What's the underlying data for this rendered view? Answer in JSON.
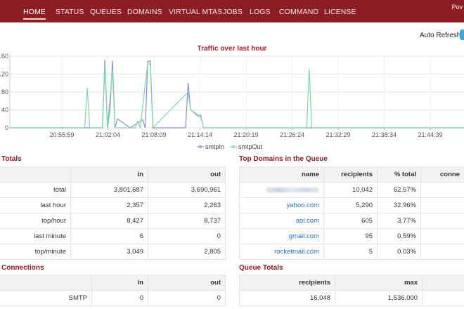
{
  "nav": {
    "items": [
      "HOME",
      "STATUS",
      "QUEUES",
      "DOMAINS",
      "VIRTUAL MTAS",
      "JOBS",
      "LOGS",
      "COMMAND",
      "LICENSE"
    ],
    "active": "HOME",
    "right_text": "Pov"
  },
  "auto_refresh": {
    "label": "Auto Refresh"
  },
  "chart_data": {
    "type": "line",
    "title": "Traffic over last hour",
    "xlabel": "",
    "ylabel": "",
    "ylim": [
      0,
      160
    ],
    "yticks": [
      "0",
      "40",
      "80",
      "120",
      "160"
    ],
    "xticks": [
      "20:55:59",
      "21:02:04",
      "21:08:09",
      "21:14:14",
      "21:20:19",
      "21:26:24",
      "21:32:29",
      "21:38:34",
      "21:44:39"
    ],
    "series": [
      {
        "name": "smtpIn",
        "color": "#8c8ccc",
        "points": [
          [
            "21:01:20",
            0
          ],
          [
            "21:01:40",
            152
          ],
          [
            "21:02:00",
            0
          ],
          [
            "21:02:20",
            40
          ],
          [
            "21:02:40",
            150
          ],
          [
            "21:03:00",
            0
          ],
          [
            "21:03:20",
            20
          ],
          [
            "21:05:00",
            0
          ],
          [
            "21:06:40",
            18
          ],
          [
            "21:07:00",
            0
          ],
          [
            "21:07:20",
            148
          ],
          [
            "21:07:40",
            150
          ],
          [
            "21:08:00",
            0
          ],
          [
            "21:12:20",
            0
          ],
          [
            "21:12:40",
            100
          ],
          [
            "21:13:00",
            40
          ],
          [
            "21:14:00",
            28
          ],
          [
            "21:14:20",
            28
          ],
          [
            "21:14:40",
            0
          ]
        ]
      },
      {
        "name": "smtpOut",
        "color": "#7fd6a8",
        "points": [
          [
            "20:59:00",
            0
          ],
          [
            "20:59:20",
            90
          ],
          [
            "20:59:40",
            0
          ],
          [
            "21:01:20",
            0
          ],
          [
            "21:01:40",
            140
          ],
          [
            "21:02:00",
            0
          ],
          [
            "21:02:40",
            130
          ],
          [
            "21:03:00",
            0
          ],
          [
            "21:05:40",
            0
          ],
          [
            "21:06:00",
            15
          ],
          [
            "21:06:20",
            0
          ],
          [
            "21:07:20",
            145
          ],
          [
            "21:07:40",
            140
          ],
          [
            "21:08:00",
            0
          ],
          [
            "21:12:40",
            80
          ],
          [
            "21:13:00",
            40
          ],
          [
            "21:14:00",
            25
          ],
          [
            "21:14:20",
            25
          ],
          [
            "21:14:40",
            0
          ],
          [
            "21:28:20",
            0
          ],
          [
            "21:28:40",
            132
          ],
          [
            "21:29:00",
            0
          ]
        ]
      }
    ]
  },
  "totals": {
    "title": "Totals",
    "headers": [
      "",
      "in",
      "out"
    ],
    "rows": [
      [
        "total",
        "3,801,687",
        "3,690,961"
      ],
      [
        "last hour",
        "2,357",
        "2,263"
      ],
      [
        "top/hour",
        "8,427",
        "8,737"
      ],
      [
        "last minute",
        "6",
        "0"
      ],
      [
        "top/minute",
        "3,049",
        "2,805"
      ]
    ]
  },
  "top_domains": {
    "title": "Top Domains in the Queue",
    "headers": [
      "name",
      "recipients",
      "% total",
      "conne"
    ],
    "rows": [
      [
        "",
        "10,042",
        "62.57%",
        ""
      ],
      [
        "yahoo.com",
        "5,290",
        "32.96%",
        ""
      ],
      [
        "aol.com",
        "605",
        "3.77%",
        ""
      ],
      [
        "gmail.com",
        "95",
        "0.59%",
        ""
      ],
      [
        "rocketmail.com",
        "5",
        "0.03%",
        ""
      ]
    ]
  },
  "connections": {
    "title": "Connections",
    "headers": [
      "",
      "in",
      "out"
    ],
    "rows": [
      [
        "SMTP",
        "0",
        "0"
      ]
    ]
  },
  "queue_totals": {
    "title": "Queue Totals",
    "headers": [
      "recipients",
      "max",
      ""
    ],
    "rows": [
      [
        "16,048",
        "1,536,000",
        ""
      ]
    ]
  }
}
